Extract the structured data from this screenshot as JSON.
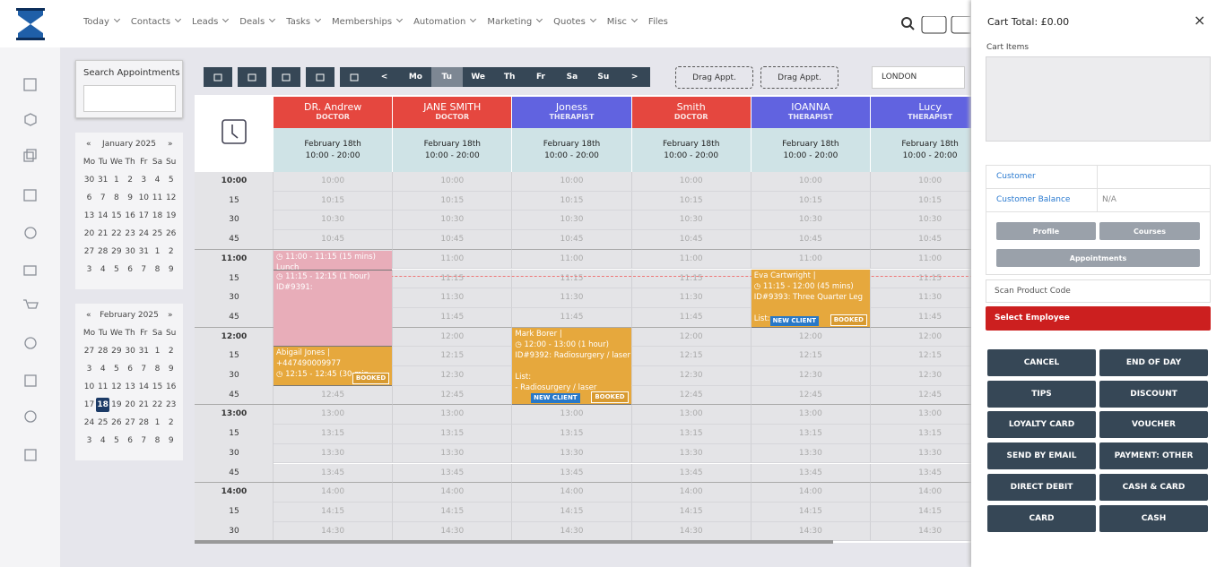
{
  "nav": {
    "items": [
      "Today",
      "Contacts",
      "Leads",
      "Deals",
      "Tasks",
      "Memberships",
      "Automation",
      "Marketing",
      "Quotes",
      "Misc",
      "Files"
    ]
  },
  "search": {
    "label": "Search Appointments"
  },
  "calendars": [
    {
      "prev": "«",
      "month": "January 2025",
      "next": "»",
      "weekdays": [
        "Mo",
        "Tu",
        "We",
        "Th",
        "Fr",
        "Sa",
        "Su"
      ],
      "weeks": [
        [
          30,
          31,
          1,
          2,
          3,
          4,
          5
        ],
        [
          6,
          7,
          8,
          9,
          10,
          11,
          12
        ],
        [
          13,
          14,
          15,
          16,
          17,
          18,
          19
        ],
        [
          20,
          21,
          22,
          23,
          24,
          25,
          26
        ],
        [
          27,
          28,
          29,
          30,
          31,
          1,
          2
        ],
        [
          3,
          4,
          5,
          6,
          7,
          8,
          9
        ]
      ]
    },
    {
      "prev": "«",
      "month": "February 2025",
      "next": "»",
      "weekdays": [
        "Mo",
        "Tu",
        "We",
        "Th",
        "Fr",
        "Sa",
        "Su"
      ],
      "weeks": [
        [
          27,
          28,
          29,
          30,
          31,
          1,
          2
        ],
        [
          3,
          4,
          5,
          6,
          7,
          8,
          9
        ],
        [
          10,
          11,
          12,
          13,
          14,
          15,
          16
        ],
        [
          17,
          18,
          19,
          20,
          21,
          22,
          23
        ],
        [
          24,
          25,
          26,
          27,
          28,
          1,
          2
        ],
        [
          3,
          4,
          5,
          6,
          7,
          8,
          9
        ]
      ]
    }
  ],
  "toolbar": {
    "days": [
      "<",
      "Mo",
      "Tu",
      "We",
      "Th",
      "Fr",
      "Sa",
      "Su",
      ">"
    ],
    "drag": [
      "Drag Appt.",
      "Drag Appt."
    ],
    "location": "LONDON"
  },
  "staff": [
    {
      "name": "DR. Andrew",
      "role": "DOCTOR",
      "date": "February 18th",
      "hours": "10:00 - 20:00",
      "color": "#e5473f"
    },
    {
      "name": "JANE SMITH",
      "role": "DOCTOR",
      "date": "February 18th",
      "hours": "10:00 - 20:00",
      "color": "#e5473f"
    },
    {
      "name": "Joness",
      "role": "THERAPIST",
      "date": "February 18th",
      "hours": "10:00 - 20:00",
      "color": "#6163e0"
    },
    {
      "name": "Smith",
      "role": "DOCTOR",
      "date": "February 18th",
      "hours": "10:00 - 20:00",
      "color": "#e5473f"
    },
    {
      "name": "IOANNA",
      "role": "THERAPIST",
      "date": "February 18th",
      "hours": "10:00 - 20:00",
      "color": "#6163e0"
    },
    {
      "name": "Lucy",
      "role": "THERAPIST",
      "date": "February 18th",
      "hours": "10:00 - 20:00",
      "color": "#6163e0"
    }
  ],
  "slots": [
    {
      "left": "10:00",
      "cell": "10:00"
    },
    {
      "left": "15",
      "cell": "10:15"
    },
    {
      "left": "30",
      "cell": "10:30"
    },
    {
      "left": "45",
      "cell": "10:45"
    },
    {
      "left": "11:00",
      "cell": "11:00"
    },
    {
      "left": "15",
      "cell": "11:15"
    },
    {
      "left": "30",
      "cell": "11:30"
    },
    {
      "left": "45",
      "cell": "11:45"
    },
    {
      "left": "12:00",
      "cell": "12:00"
    },
    {
      "left": "15",
      "cell": "12:15"
    },
    {
      "left": "30",
      "cell": "12:30"
    },
    {
      "left": "45",
      "cell": "12:45"
    },
    {
      "left": "13:00",
      "cell": "13:00"
    },
    {
      "left": "15",
      "cell": "13:15"
    },
    {
      "left": "30",
      "cell": "13:30"
    },
    {
      "left": "45",
      "cell": "13:45"
    },
    {
      "left": "14:00",
      "cell": "14:00"
    },
    {
      "left": "15",
      "cell": "14:15"
    },
    {
      "left": "30",
      "cell": "14:30"
    }
  ],
  "appointments": [
    {
      "lines": [
        "◷ 11:00 - 11:15 (15 mins)",
        "Lunch"
      ],
      "badges": [],
      "color": "#e8adb9"
    },
    {
      "lines": [
        "◷ 11:15 - 12:15 (1 hour)",
        "ID#9391:"
      ],
      "badges": [],
      "color": "#e8adb9"
    },
    {
      "lines": [
        "Abigail Jones |",
        "+447490009977",
        "◷ 12:15 - 12:45 (30 min"
      ],
      "badges": [
        "BOOKED"
      ],
      "color": "#e6a83d"
    },
    {
      "lines": [
        "Mark Borer |",
        "◷ 12:00 - 13:00 (1 hour)",
        "ID#9392: Radiosurgery / laser",
        "",
        "List:",
        "- Radiosurgery / laser"
      ],
      "badges": [
        "NEW CLIENT",
        "BOOKED"
      ],
      "color": "#e6a83d"
    },
    {
      "lines": [
        "Eva Cartwright |",
        "◷ 11:15 - 12:00 (45 mins)",
        "ID#9393: Three Quarter Leg",
        "",
        "List:"
      ],
      "badges": [
        "NEW CLIENT",
        "BOOKED"
      ],
      "color": "#e6a83d"
    }
  ],
  "cart": {
    "title": "Cart Total: £0.00",
    "close": "×",
    "items_label": "Cart Items",
    "customer": "Customer",
    "balance_label": "Customer Balance",
    "balance": "N/A",
    "buttons": [
      "Profile",
      "Courses",
      "Appointments"
    ],
    "scan": "Scan Product Code",
    "employee": "Select Employee",
    "actions": [
      "CANCEL",
      "END OF DAY",
      "TIPS",
      "DISCOUNT",
      "LOYALTY CARD",
      "VOUCHER",
      "SEND BY EMAIL",
      "PAYMENT: OTHER",
      "DIRECT DEBIT",
      "CASH & CARD",
      "CARD",
      "CASH"
    ]
  }
}
